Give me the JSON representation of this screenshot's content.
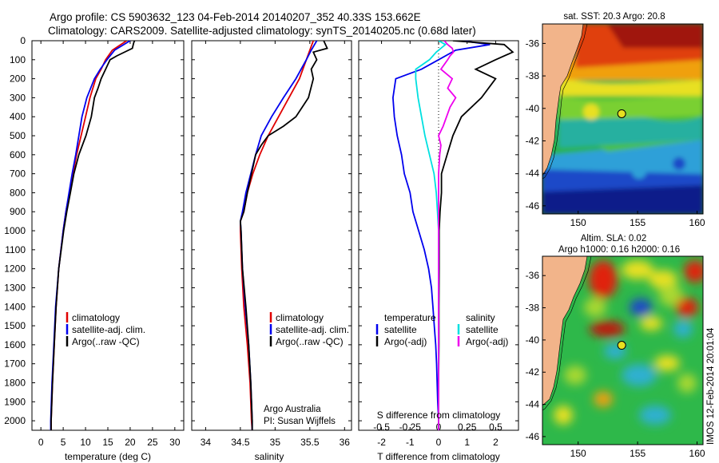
{
  "header": {
    "line1": "Argo profile: CS 5903632_123 04-Feb-2014 20140207_352 40.33S 153.662E",
    "line2": "Climatology: CARS2009. Satellite-adjusted climatology: synTS_20140205.nc (0.68d later)"
  },
  "colors": {
    "clim": "#e00000",
    "sat": "#0000ee",
    "argo": "#000000",
    "sat_s": "#00e0e0",
    "argo_s": "#ee00ee",
    "land": "#f2b48a"
  },
  "yaxis": {
    "ticks": [
      0,
      100,
      200,
      300,
      400,
      500,
      600,
      700,
      800,
      900,
      1000,
      1100,
      1200,
      1300,
      1400,
      1500,
      1600,
      1700,
      1800,
      1900,
      2000
    ]
  },
  "chart_data": [
    {
      "type": "line",
      "id": "temperature",
      "xlabel": "temperature (deg C)",
      "xlim": [
        -2,
        32
      ],
      "ylim": [
        2050,
        0
      ],
      "xticks": [
        0,
        5,
        10,
        15,
        20,
        25,
        30
      ],
      "legend": [
        "climatology",
        "satellite-adj. clim.",
        "Argo(..raw -QC)"
      ],
      "series": [
        {
          "name": "climatology",
          "depth": [
            0,
            50,
            100,
            150,
            200,
            300,
            400,
            500,
            600,
            700,
            800,
            900,
            1000,
            1200,
            1400,
            1600,
            1800,
            2000,
            2050
          ],
          "values": [
            19.2,
            16,
            14.5,
            13.5,
            12.3,
            11,
            10,
            9,
            8,
            7.2,
            6.4,
            5.6,
            5,
            4,
            3.4,
            3,
            2.6,
            2.3,
            2.3
          ]
        },
        {
          "name": "satellite-adj. clim.",
          "depth": [
            0,
            50,
            100,
            150,
            200,
            300,
            400,
            500,
            600,
            700,
            800,
            900,
            1000,
            1200,
            1400,
            1600,
            1800,
            2000,
            2050
          ],
          "values": [
            20,
            16.5,
            14.8,
            13.3,
            12,
            10.3,
            9.2,
            8.5,
            7.8,
            7,
            6.3,
            5.6,
            5,
            4,
            3.3,
            2.9,
            2.5,
            2.2,
            2.2
          ]
        },
        {
          "name": "Argo(..raw -QC)",
          "depth": [
            0,
            10,
            40,
            80,
            100,
            150,
            200,
            250,
            300,
            400,
            500,
            600,
            700,
            800,
            900,
            1000,
            1200,
            1400,
            1600,
            1800,
            2000,
            2050
          ],
          "values": [
            21,
            20.8,
            20.5,
            17,
            15.5,
            14.5,
            13.5,
            12.8,
            12,
            11.3,
            10.1,
            8.5,
            7.4,
            6.6,
            5.8,
            5.1,
            4,
            3.4,
            3,
            2.6,
            2.3,
            2.3
          ]
        }
      ]
    },
    {
      "type": "line",
      "id": "salinity",
      "xlabel": "salinity",
      "xlim": [
        33.8,
        36.1
      ],
      "ylim": [
        2050,
        0
      ],
      "xticks": [
        34,
        34.5,
        35,
        35.5,
        36
      ],
      "legend": [
        "climatology",
        "satellite-adj. clim.",
        "Argo(..raw -QC)"
      ],
      "annotation": [
        "Argo Australia",
        "PI: Susan Wijffels"
      ],
      "series": [
        {
          "name": "climatology",
          "depth": [
            0,
            50,
            100,
            200,
            300,
            400,
            500,
            600,
            700,
            800,
            900,
            950,
            1000,
            1200,
            1400,
            1600,
            1800,
            2000,
            2050
          ],
          "values": [
            35.55,
            35.5,
            35.45,
            35.35,
            35.2,
            35.05,
            34.9,
            34.78,
            34.68,
            34.6,
            34.55,
            34.5,
            34.5,
            34.52,
            34.55,
            34.6,
            34.64,
            34.66,
            34.67
          ]
        },
        {
          "name": "satellite-adj. clim.",
          "depth": [
            0,
            50,
            100,
            200,
            300,
            400,
            500,
            600,
            700,
            800,
            900,
            950,
            1000,
            1200,
            1400,
            1600,
            1800,
            2000,
            2050
          ],
          "values": [
            35.6,
            35.52,
            35.45,
            35.3,
            35.12,
            34.95,
            34.8,
            34.72,
            34.65,
            34.58,
            34.53,
            34.5,
            34.51,
            34.53,
            34.57,
            34.62,
            34.65,
            34.67,
            34.67
          ]
        },
        {
          "name": "Argo(..raw -QC)",
          "depth": [
            0,
            40,
            60,
            100,
            150,
            200,
            300,
            400,
            450,
            500,
            550,
            600,
            700,
            800,
            900,
            950,
            1000,
            1200,
            1400,
            1600,
            1800,
            2000,
            2050
          ],
          "values": [
            35.7,
            35.75,
            35.55,
            35.6,
            35.52,
            35.55,
            35.48,
            35.3,
            35.12,
            34.9,
            34.8,
            34.72,
            34.66,
            34.6,
            34.55,
            34.5,
            34.51,
            34.53,
            34.58,
            34.62,
            34.65,
            34.67,
            34.67
          ]
        }
      ]
    },
    {
      "type": "line",
      "id": "difference",
      "xlabel": "T difference from climatology",
      "xlabel2": "S difference from climatology",
      "xlim": [
        -2.8,
        2.8
      ],
      "ylim": [
        2050,
        0
      ],
      "xticks": [
        -2,
        -1,
        0,
        1,
        2
      ],
      "xticks2": [
        -0.5,
        -0.25,
        0,
        0.25,
        0.5
      ],
      "xtick2_labels": [
        "-0.5",
        "-0.25",
        "0",
        "0.25",
        "0.5"
      ],
      "legend_temp_title": "temperature",
      "legend_sal_title": "salinity",
      "legend": [
        "satellite",
        "Argo(-adj)",
        "satellite",
        "Argo(-adj)"
      ],
      "series": [
        {
          "name": "T satellite",
          "depth": [
            0,
            20,
            50,
            100,
            150,
            200,
            300,
            400,
            500,
            600,
            700,
            800,
            900,
            1000,
            1100,
            1200,
            1300,
            1400,
            1500,
            1600,
            1700,
            1800,
            1900,
            2000,
            2050
          ],
          "values": [
            0.8,
            1.8,
            0.6,
            0,
            -0.6,
            -1.5,
            -1.6,
            -1.55,
            -1.45,
            -1.3,
            -1.2,
            -1.0,
            -0.9,
            -0.7,
            -0.5,
            -0.35,
            -0.25,
            -0.2,
            -0.15,
            -0.1,
            -0.07,
            -0.05,
            -0.03,
            0,
            0
          ]
        },
        {
          "name": "T Argo(-adj)",
          "depth": [
            0,
            20,
            60,
            100,
            150,
            200,
            300,
            400,
            500,
            600,
            700,
            800,
            900,
            1000,
            1200,
            1400,
            1600,
            1800,
            2000,
            2050
          ],
          "values": [
            0.5,
            2.3,
            2.6,
            2.0,
            1.3,
            2.0,
            1.5,
            0.8,
            0.5,
            0.3,
            0.1,
            0.1,
            0.05,
            0.02,
            0.02,
            0.01,
            0.01,
            0,
            0,
            0
          ]
        },
        {
          "name": "S satellite",
          "depth": [
            0,
            20,
            60,
            100,
            150,
            200,
            300,
            400,
            500,
            600,
            700,
            800,
            900,
            1000,
            1200,
            1400,
            1600,
            1800,
            2000,
            2050
          ],
          "values": [
            0,
            0.06,
            -0.02,
            -0.08,
            -0.2,
            -0.2,
            -0.18,
            -0.15,
            -0.12,
            -0.08,
            -0.04,
            -0.02,
            -0.01,
            0,
            0,
            0,
            0,
            0,
            0,
            0
          ]
        },
        {
          "name": "S Argo(-adj)",
          "depth": [
            0,
            20,
            40,
            60,
            80,
            100,
            150,
            200,
            250,
            300,
            350,
            400,
            450,
            500,
            550,
            600,
            700,
            800,
            900,
            1000,
            1200,
            1400,
            1600,
            1800,
            2000,
            2050
          ],
          "values": [
            0.05,
            0.08,
            0.12,
            0.13,
            0.1,
            0.08,
            0.02,
            0.12,
            0.08,
            0.15,
            0.1,
            0.07,
            0.04,
            0.0,
            0.02,
            0.01,
            0.0,
            0.0,
            0.0,
            0.0,
            0,
            0,
            0,
            0,
            0,
            0
          ]
        }
      ]
    }
  ],
  "map_sst": {
    "title": "sat. SST: 20.3 Argo: 20.8",
    "xticks": [
      150,
      155,
      160
    ],
    "yticks": [
      -36,
      -38,
      -40,
      -42,
      -44,
      -46
    ],
    "xlim": [
      147,
      160.5
    ],
    "ylim": [
      -46.5,
      -34.8
    ],
    "argo_lon": 153.662,
    "argo_lat": -40.33
  },
  "map_sla": {
    "title1": "Altim. SLA: 0.02",
    "title2": "Argo h1000: 0.16 h2000: 0.16",
    "xticks": [
      150,
      155,
      160
    ],
    "yticks": [
      -36,
      -38,
      -40,
      -42,
      -44,
      -46
    ],
    "xlim": [
      147,
      160.5
    ],
    "ylim": [
      -46.5,
      -34.8
    ],
    "argo_lon": 153.662,
    "argo_lat": -40.33
  },
  "watermark": "IMOS 12-Feb-2014 20:01:04"
}
